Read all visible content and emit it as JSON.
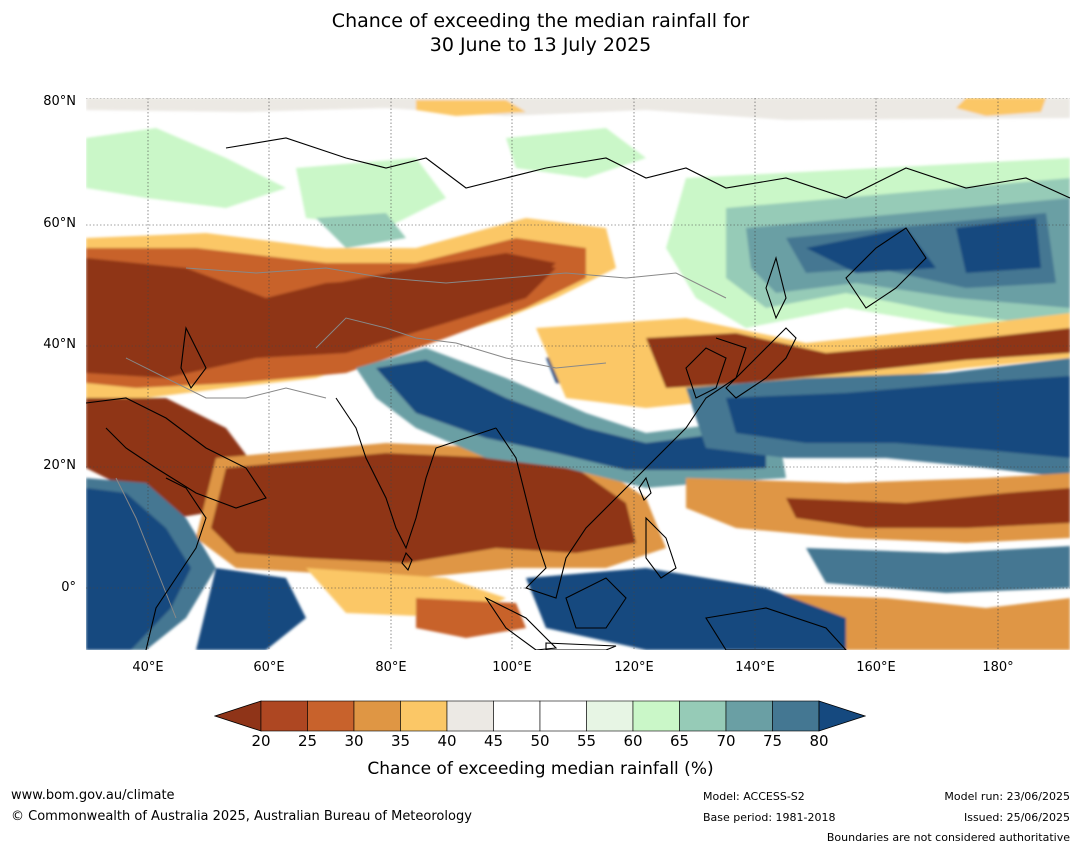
{
  "title": {
    "line1": "Chance of exceeding the median rainfall for",
    "line2": "30 June to 13 July 2025"
  },
  "map": {
    "lat_labels": [
      "80°N",
      "60°N",
      "40°N",
      "20°N",
      "0°"
    ],
    "lon_labels": [
      "40°E",
      "60°E",
      "80°E",
      "100°E",
      "120°E",
      "140°E",
      "160°E",
      "180°"
    ],
    "extent": {
      "lon_min": 30,
      "lon_max": 192,
      "lat_min": -10,
      "lat_max": 81
    },
    "ocean_color": "#ffffff",
    "coastline_color": "#000000",
    "border_color": "#888888"
  },
  "colorbar": {
    "ticks": [
      "20",
      "25",
      "30",
      "35",
      "40",
      "45",
      "50",
      "55",
      "60",
      "65",
      "70",
      "75",
      "80"
    ],
    "colors": [
      "#8f3418",
      "#ae4722",
      "#c8622c",
      "#df9644",
      "#fbc766",
      "#ece9e4",
      "#ffffff",
      "#ffffff",
      "#e7f5e4",
      "#caf7c8",
      "#96cbb7",
      "#6a9fa4",
      "#447792",
      "#15497f"
    ],
    "label": "Chance of exceeding median rainfall (%)"
  },
  "footer": {
    "website": "www.bom.gov.au/climate",
    "copyright": "© Commonwealth of Australia 2025, Australian Bureau of Meteorology",
    "model": "Model: ACCESS-S2",
    "base_period": "Base period: 1981-2018",
    "model_run": "Model run: 23/06/2025",
    "issued": "Issued: 25/06/2025",
    "disclaimer": "Boundaries are not considered authoritative"
  }
}
